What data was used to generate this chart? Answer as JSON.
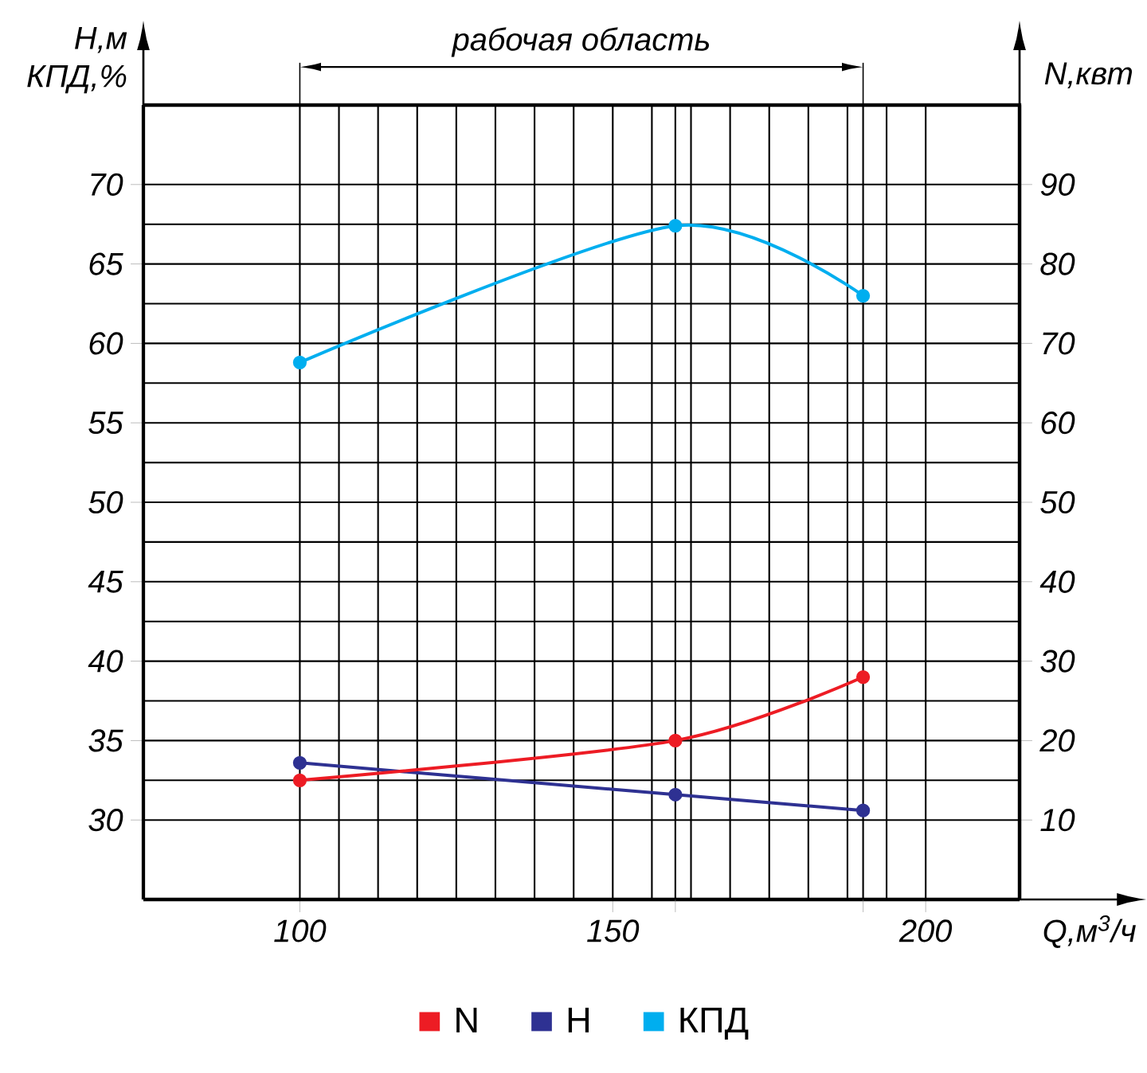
{
  "chart_data": {
    "type": "line",
    "xlabel": "Q,м$^{3}$/ч",
    "ylabel": "H,м КПД,%",
    "y2label": "N,квт",
    "x": [
      100,
      160,
      190
    ],
    "series": [
      {
        "name": "N",
        "color": "#ed1c24",
        "values": [
          15,
          20,
          28
        ],
        "axis": "y2"
      },
      {
        "name": "H",
        "color": "#2e3192",
        "values": [
          33.6,
          31.6,
          30.6
        ]
      },
      {
        "name": "КПД",
        "color": "#00aeef",
        "values": [
          58.8,
          67.4,
          63.0
        ]
      }
    ],
    "xlim": [
      75,
      215
    ],
    "xticks": [
      100,
      150,
      {
        "value": 160,
        "label": null
      },
      {
        "value": 190,
        "label": null
      },
      200
    ],
    "ylim": [
      25,
      75
    ],
    "yticks": [
      30,
      35,
      40,
      45,
      50,
      55,
      60,
      65,
      70
    ],
    "y2lim": [
      0,
      100
    ],
    "y2ticks": [
      10,
      20,
      30,
      40,
      50,
      60,
      70,
      80,
      90
    ],
    "annotations": [
      "рабочая область"
    ],
    "grid": true,
    "legend": "bottom",
    "marker": "circle",
    "line_style": "solid"
  }
}
